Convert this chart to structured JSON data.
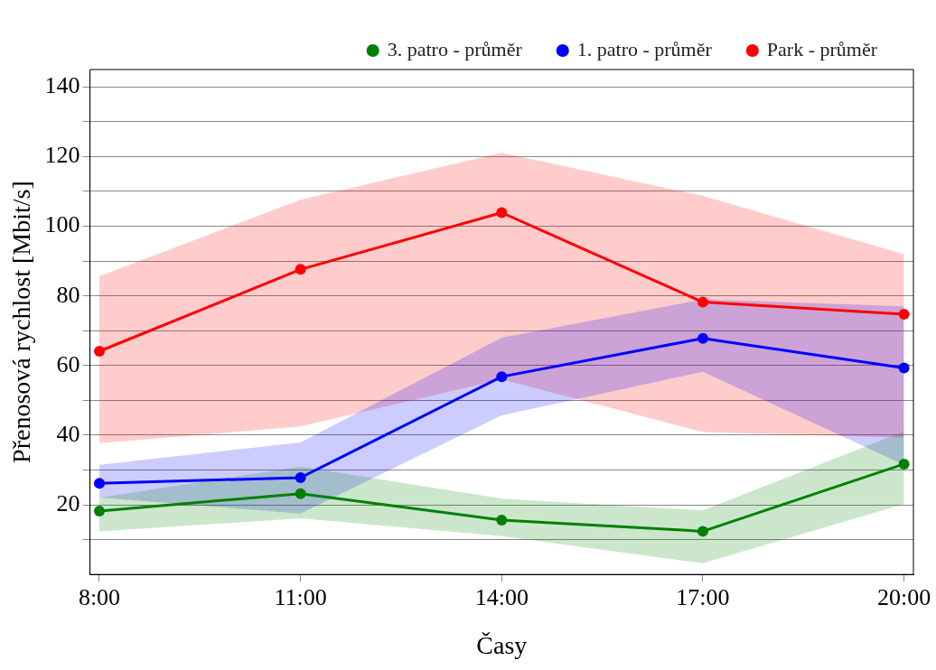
{
  "chart_data": {
    "type": "line",
    "xlabel": "Časy",
    "ylabel": "Přenosová rychlost [Mbit/s]",
    "x": [
      8,
      11,
      14,
      17,
      20
    ],
    "xlim": [
      7.86,
      20.14
    ],
    "xticks": [
      {
        "value": 8,
        "label": "8:00"
      },
      {
        "value": 11,
        "label": "11:00"
      },
      {
        "value": 14,
        "label": "14:00"
      },
      {
        "value": 17,
        "label": "17:00"
      },
      {
        "value": 20,
        "label": "20:00"
      }
    ],
    "ylim": [
      0,
      145
    ],
    "yticks": [
      {
        "value": 10,
        "label": null
      },
      20,
      {
        "value": 30,
        "label": null
      },
      40,
      {
        "value": 50,
        "label": null
      },
      60,
      {
        "value": 70,
        "label": null
      },
      80,
      {
        "value": 90,
        "label": null
      },
      100,
      {
        "value": 110,
        "label": null
      },
      120,
      {
        "value": 130,
        "label": null
      },
      140
    ],
    "grid": "y",
    "legend": "top right",
    "marker": "circle",
    "line_style": "solid",
    "series": [
      {
        "name": "3. patro - průměr",
        "color": "#008000",
        "values": [
          18.2,
          23.2,
          15.6,
          12.4,
          31.7
        ],
        "lower": [
          12.4,
          16.1,
          11,
          3.2,
          20.2
        ],
        "upper": [
          22,
          31,
          21.8,
          18.4,
          41.1
        ]
      },
      {
        "name": "1. patro - průměr",
        "color": "#0000ff",
        "values": [
          26.2,
          27.8,
          56.8,
          67.8,
          59.3
        ],
        "lower": [
          22.1,
          17.5,
          45.7,
          58.2,
          31.5
        ],
        "upper": [
          31.5,
          37.9,
          68,
          79,
          77
        ]
      },
      {
        "name": "Park - průměr",
        "color": "#ff0000",
        "values": [
          64.1,
          87.6,
          103.9,
          78.2,
          74.7
        ],
        "lower": [
          37.7,
          42.5,
          56,
          40.9,
          39.3
        ],
        "upper": [
          85.7,
          107.6,
          121.1,
          108.7,
          92
        ]
      }
    ]
  }
}
